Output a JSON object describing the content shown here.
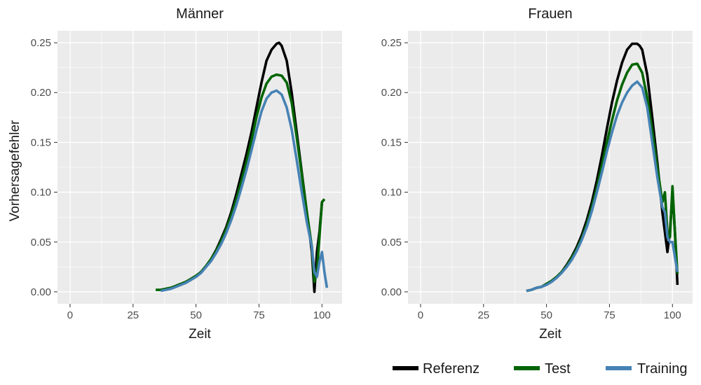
{
  "chart_data": {
    "type": "line",
    "ylabel": "Vorhersagefehler",
    "xlim": [
      -5,
      108
    ],
    "ylim": [
      -0.012,
      0.262
    ],
    "xticks": [
      0,
      25,
      50,
      75,
      100
    ],
    "yticks": [
      0.0,
      0.05,
      0.1,
      0.15,
      0.2,
      0.25
    ],
    "xtick_labels": [
      "0",
      "25",
      "50",
      "75",
      "100"
    ],
    "ytick_labels": [
      "0.00",
      "0.05",
      "0.10",
      "0.15",
      "0.20",
      "0.25"
    ],
    "grid": true,
    "legend_position": "bottom-right",
    "colors": {
      "Referenz": "#000000",
      "Test": "#006400",
      "Training": "#4682b4"
    },
    "panels": [
      {
        "title": "Männer",
        "xlabel": "Zeit",
        "series": [
          {
            "name": "Referenz",
            "x": [
              36,
              38,
              40,
              42,
              44,
              46,
              48,
              50,
              52,
              54,
              56,
              58,
              60,
              62,
              64,
              66,
              68,
              70,
              72,
              74,
              76,
              78,
              80,
              82,
              83,
              84,
              86,
              88,
              90,
              92,
              94,
              96,
              97,
              98,
              99,
              100,
              101
            ],
            "y": [
              0.002,
              0.003,
              0.004,
              0.006,
              0.008,
              0.01,
              0.013,
              0.016,
              0.02,
              0.026,
              0.033,
              0.042,
              0.053,
              0.065,
              0.08,
              0.098,
              0.118,
              0.138,
              0.16,
              0.185,
              0.21,
              0.232,
              0.243,
              0.249,
              0.25,
              0.247,
              0.232,
              0.2,
              0.16,
              0.12,
              0.08,
              0.04,
              0.0,
              0.04,
              0.06,
              0.09,
              0.093
            ]
          },
          {
            "name": "Test",
            "x": [
              34,
              36,
              38,
              40,
              42,
              44,
              46,
              48,
              50,
              52,
              54,
              56,
              58,
              60,
              62,
              64,
              66,
              68,
              70,
              72,
              74,
              76,
              78,
              80,
              82,
              84,
              86,
              88,
              90,
              92,
              94,
              96,
              97,
              98,
              99,
              100,
              101
            ],
            "y": [
              0.002,
              0.002,
              0.003,
              0.004,
              0.006,
              0.008,
              0.01,
              0.013,
              0.016,
              0.02,
              0.026,
              0.033,
              0.041,
              0.051,
              0.063,
              0.077,
              0.093,
              0.111,
              0.13,
              0.152,
              0.175,
              0.195,
              0.209,
              0.216,
              0.218,
              0.217,
              0.21,
              0.19,
              0.155,
              0.118,
              0.08,
              0.045,
              0.01,
              0.02,
              0.055,
              0.09,
              0.093
            ]
          },
          {
            "name": "Training",
            "x": [
              36,
              38,
              40,
              42,
              44,
              46,
              48,
              50,
              52,
              54,
              56,
              58,
              60,
              62,
              64,
              66,
              68,
              70,
              72,
              74,
              76,
              78,
              80,
              82,
              84,
              86,
              88,
              90,
              92,
              94,
              96,
              97,
              98,
              99,
              100,
              101,
              102
            ],
            "y": [
              0.001,
              0.002,
              0.003,
              0.005,
              0.007,
              0.009,
              0.012,
              0.015,
              0.019,
              0.025,
              0.031,
              0.039,
              0.048,
              0.059,
              0.072,
              0.087,
              0.104,
              0.122,
              0.142,
              0.162,
              0.181,
              0.194,
              0.2,
              0.202,
              0.198,
              0.185,
              0.163,
              0.132,
              0.1,
              0.07,
              0.045,
              0.02,
              0.015,
              0.03,
              0.04,
              0.02,
              0.004
            ]
          }
        ]
      },
      {
        "title": "Frauen",
        "xlabel": "Zeit",
        "series": [
          {
            "name": "Referenz",
            "x": [
              42,
              44,
              46,
              48,
              50,
              52,
              54,
              56,
              58,
              60,
              62,
              64,
              66,
              68,
              70,
              72,
              74,
              76,
              78,
              80,
              82,
              84,
              86,
              87,
              88,
              90,
              92,
              94,
              96,
              97,
              98,
              99,
              100,
              101,
              102
            ],
            "y": [
              0.001,
              0.002,
              0.004,
              0.005,
              0.008,
              0.011,
              0.015,
              0.02,
              0.027,
              0.035,
              0.045,
              0.057,
              0.072,
              0.09,
              0.112,
              0.137,
              0.164,
              0.19,
              0.212,
              0.23,
              0.243,
              0.249,
              0.249,
              0.247,
              0.243,
              0.218,
              0.175,
              0.13,
              0.08,
              0.06,
              0.04,
              0.06,
              0.1,
              0.06,
              0.007
            ]
          },
          {
            "name": "Test",
            "x": [
              42,
              44,
              46,
              48,
              50,
              52,
              54,
              56,
              58,
              60,
              62,
              64,
              66,
              68,
              70,
              72,
              74,
              76,
              78,
              80,
              82,
              84,
              86,
              88,
              90,
              92,
              94,
              96,
              97,
              98,
              99,
              100,
              101,
              102
            ],
            "y": [
              0.001,
              0.002,
              0.004,
              0.005,
              0.008,
              0.011,
              0.015,
              0.02,
              0.026,
              0.034,
              0.043,
              0.054,
              0.068,
              0.085,
              0.105,
              0.127,
              0.15,
              0.172,
              0.192,
              0.208,
              0.22,
              0.228,
              0.229,
              0.22,
              0.195,
              0.162,
              0.125,
              0.09,
              0.1,
              0.06,
              0.055,
              0.106,
              0.06,
              0.018
            ]
          },
          {
            "name": "Training",
            "x": [
              42,
              44,
              46,
              48,
              50,
              52,
              54,
              56,
              58,
              60,
              62,
              64,
              66,
              68,
              70,
              72,
              74,
              76,
              78,
              80,
              82,
              84,
              86,
              88,
              90,
              92,
              94,
              96,
              97,
              98,
              99,
              100,
              101,
              102
            ],
            "y": [
              0.001,
              0.002,
              0.004,
              0.005,
              0.007,
              0.01,
              0.014,
              0.019,
              0.025,
              0.032,
              0.041,
              0.052,
              0.065,
              0.081,
              0.1,
              0.12,
              0.141,
              0.16,
              0.177,
              0.19,
              0.2,
              0.207,
              0.211,
              0.205,
              0.185,
              0.15,
              0.115,
              0.085,
              0.08,
              0.055,
              0.05,
              0.05,
              0.035,
              0.02
            ]
          }
        ]
      }
    ]
  }
}
